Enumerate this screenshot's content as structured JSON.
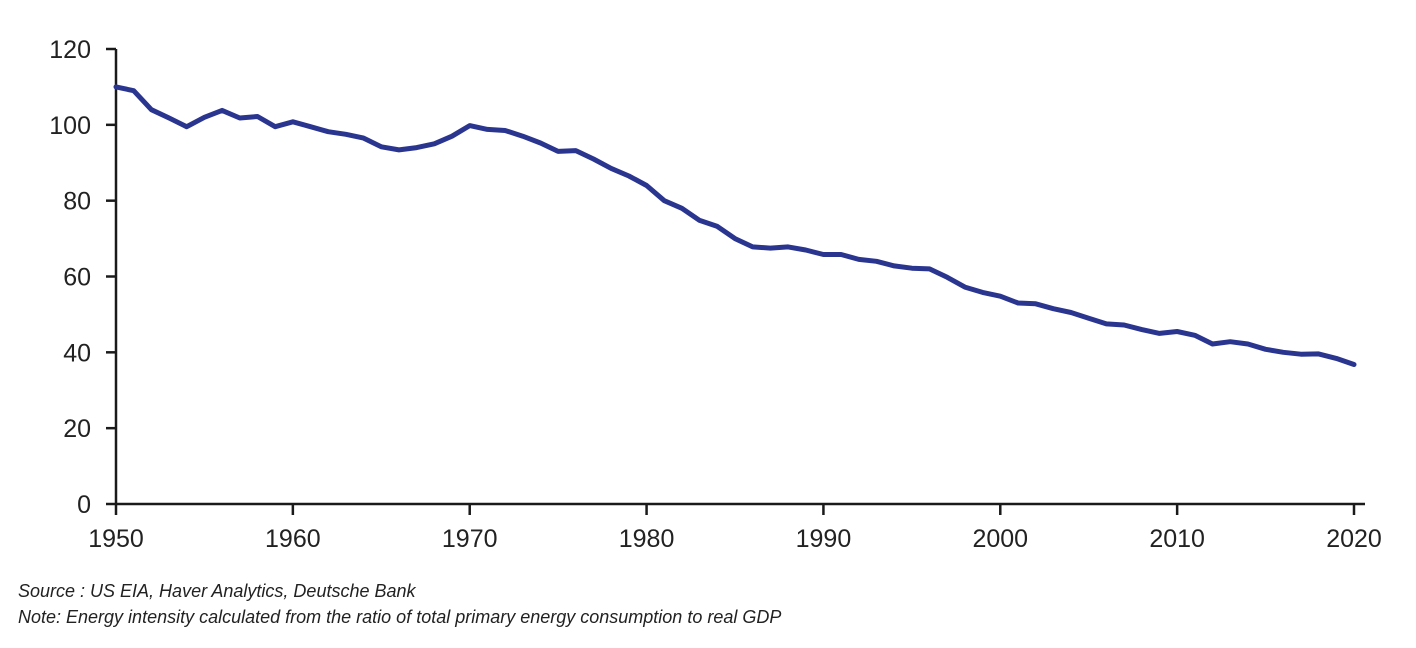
{
  "chart_data": {
    "type": "line",
    "title": "",
    "xlabel": "",
    "ylabel": "",
    "xlim": [
      1950,
      2020
    ],
    "ylim": [
      0,
      120
    ],
    "x_ticks": [
      "1950",
      "1960",
      "1970",
      "1980",
      "1990",
      "2000",
      "2010",
      "2020"
    ],
    "y_ticks": [
      "0",
      "20",
      "40",
      "60",
      "80",
      "100",
      "120"
    ],
    "grid": false,
    "series": [
      {
        "color": "#2a3590",
        "x": [
          1950,
          1951,
          1952,
          1953,
          1954,
          1955,
          1956,
          1957,
          1958,
          1959,
          1960,
          1961,
          1962,
          1963,
          1964,
          1965,
          1966,
          1967,
          1968,
          1969,
          1970,
          1971,
          1972,
          1973,
          1974,
          1975,
          1976,
          1977,
          1978,
          1979,
          1980,
          1981,
          1982,
          1983,
          1984,
          1985,
          1986,
          1987,
          1988,
          1989,
          1990,
          1991,
          1992,
          1993,
          1994,
          1995,
          1996,
          1997,
          1998,
          1999,
          2000,
          2001,
          2002,
          2003,
          2004,
          2005,
          2006,
          2007,
          2008,
          2009,
          2010,
          2011,
          2012,
          2013,
          2014,
          2015,
          2016,
          2017,
          2018,
          2019,
          2020
        ],
        "values": [
          110,
          109,
          104,
          101.8,
          99.5,
          102,
          103.8,
          101.8,
          102.2,
          99.5,
          100.8,
          99.5,
          98.2,
          97.5,
          96.5,
          94.2,
          93.4,
          94,
          95,
          97,
          99.8,
          98.8,
          98.5,
          97,
          95.2,
          93,
          93.2,
          91,
          88.5,
          86.5,
          84,
          80,
          78,
          74.8,
          73.2,
          70,
          67.8,
          67.5,
          67.8,
          67,
          65.8,
          65.8,
          64.5,
          64,
          62.8,
          62.2,
          62,
          59.8,
          57.2,
          55.8,
          54.8,
          53,
          52.8,
          51.5,
          50.5,
          49,
          47.5,
          47.2,
          46,
          45,
          45.5,
          44.5,
          42.2,
          42.8,
          42.2,
          40.8,
          40,
          39.5,
          39.6,
          38.4,
          36.8
        ]
      }
    ]
  },
  "notes": {
    "source": "Source : US EIA, Haver Analytics, Deutsche Bank",
    "note": "Note: Energy intensity calculated from the ratio of total primary energy consumption to real GDP"
  }
}
